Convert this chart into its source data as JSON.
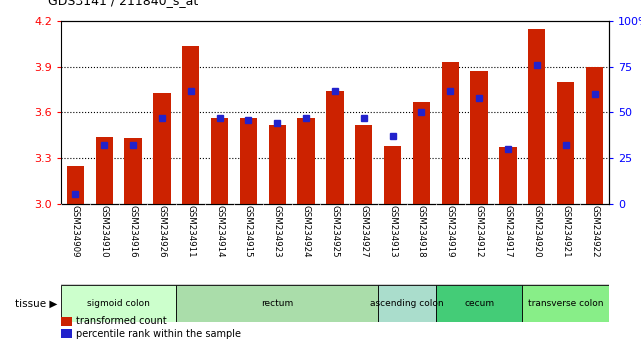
{
  "title": "GDS3141 / 211840_s_at",
  "samples": [
    "GSM234909",
    "GSM234910",
    "GSM234916",
    "GSM234926",
    "GSM234911",
    "GSM234914",
    "GSM234915",
    "GSM234923",
    "GSM234924",
    "GSM234925",
    "GSM234927",
    "GSM234913",
    "GSM234918",
    "GSM234919",
    "GSM234912",
    "GSM234917",
    "GSM234920",
    "GSM234921",
    "GSM234922"
  ],
  "bar_values": [
    3.25,
    3.44,
    3.43,
    3.73,
    4.04,
    3.56,
    3.56,
    3.52,
    3.56,
    3.74,
    3.52,
    3.38,
    3.67,
    3.93,
    3.87,
    3.37,
    4.15,
    3.8,
    3.9
  ],
  "percentile_values": [
    5,
    32,
    32,
    47,
    62,
    47,
    46,
    44,
    47,
    62,
    47,
    37,
    50,
    62,
    58,
    30,
    76,
    32,
    60
  ],
  "bar_color": "#cc2200",
  "percentile_color": "#2222cc",
  "ylim_left": [
    3.0,
    4.2
  ],
  "ylim_right": [
    0,
    100
  ],
  "yticks_left": [
    3.0,
    3.3,
    3.6,
    3.9,
    4.2
  ],
  "yticks_right": [
    0,
    25,
    50,
    75,
    100
  ],
  "ytick_labels_right": [
    "0",
    "25",
    "50",
    "75",
    "100%"
  ],
  "grid_values": [
    3.3,
    3.6,
    3.9
  ],
  "tissue_groups": [
    {
      "label": "sigmoid colon",
      "start": 0,
      "end": 3,
      "color": "#ccffcc"
    },
    {
      "label": "rectum",
      "start": 4,
      "end": 10,
      "color": "#aaddaa"
    },
    {
      "label": "ascending colon",
      "start": 11,
      "end": 12,
      "color": "#aaddcc"
    },
    {
      "label": "cecum",
      "start": 13,
      "end": 15,
      "color": "#44cc77"
    },
    {
      "label": "transverse colon",
      "start": 16,
      "end": 18,
      "color": "#88ee88"
    }
  ],
  "legend_items": [
    {
      "label": "transformed count",
      "color": "#cc2200"
    },
    {
      "label": "percentile rank within the sample",
      "color": "#2222cc"
    }
  ],
  "tissue_label": "tissue ▶",
  "background_color": "#ffffff",
  "xticklabel_bg": "#cccccc"
}
